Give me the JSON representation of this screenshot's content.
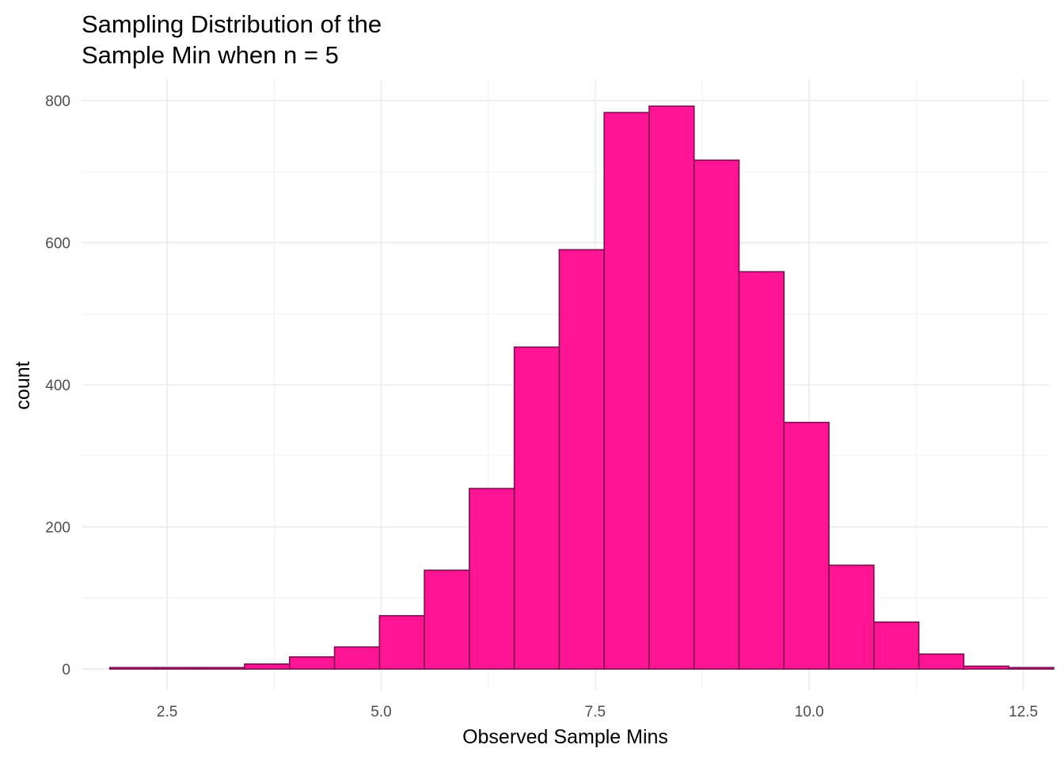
{
  "chart_data": {
    "type": "bar",
    "title_lines": [
      "Sampling Distribution of the",
      "Sample Min when n = 5"
    ],
    "xlabel": "Observed Sample Mins",
    "ylabel": "count",
    "xlim": [
      1.5,
      12.8
    ],
    "ylim": [
      -30,
      830
    ],
    "x_ticks": [
      2.5,
      5.0,
      7.5,
      10.0,
      12.5
    ],
    "x_tick_labels": [
      "2.5",
      "5.0",
      "7.5",
      "10.0",
      "12.5"
    ],
    "y_ticks": [
      0,
      200,
      400,
      600,
      800
    ],
    "y_tick_labels": [
      "0",
      "200",
      "400",
      "600",
      "800"
    ],
    "bin_start": 1.83,
    "bin_width": 0.525,
    "counts": [
      2,
      2,
      2,
      7,
      17,
      31,
      75,
      139,
      254,
      453,
      590,
      783,
      792,
      716,
      559,
      347,
      146,
      66,
      21,
      4,
      2
    ],
    "fill_color": "#ff1493",
    "border_color": "#7a0f4f",
    "grid": true
  }
}
